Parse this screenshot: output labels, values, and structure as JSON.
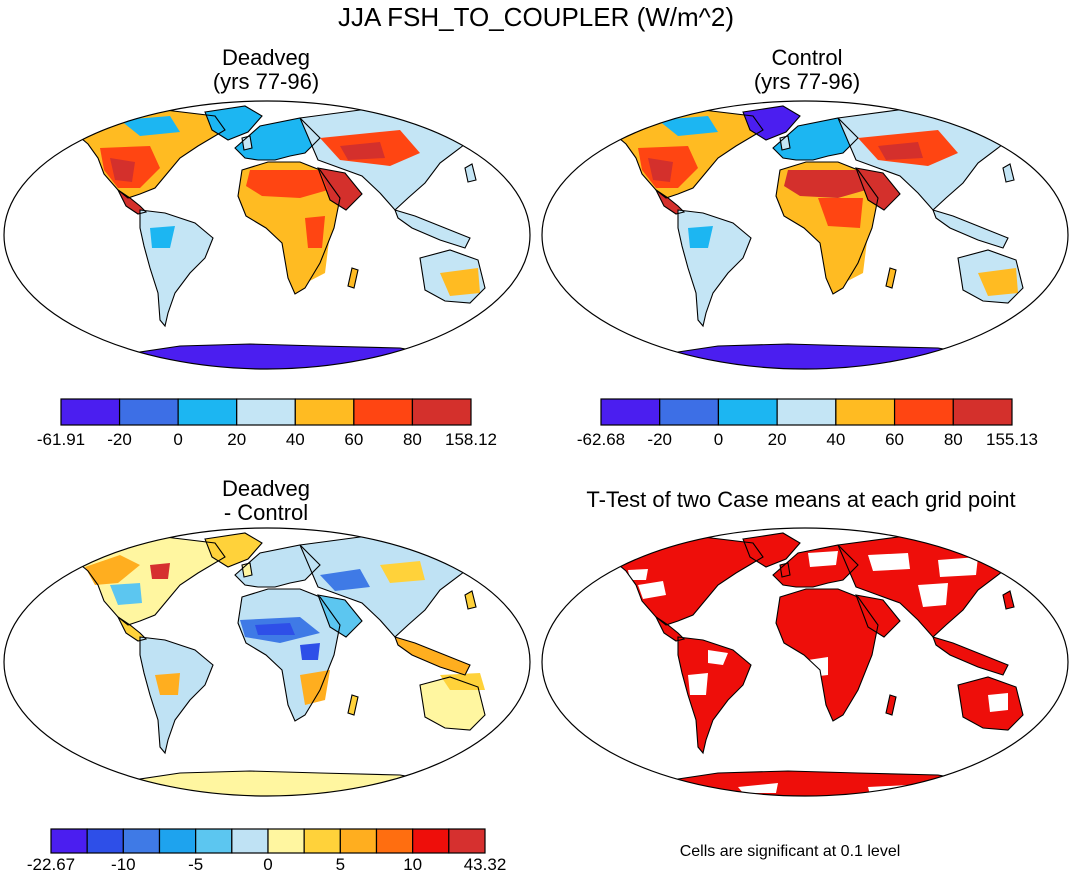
{
  "figure": {
    "title": "JJA FSH_TO_COUPLER (W/m^2)"
  },
  "panels": {
    "deadveg": {
      "title_line1": "Deadveg",
      "title_line2": "(yrs 77-96)"
    },
    "control": {
      "title_line1": "Control",
      "title_line2": "(yrs 77-96)"
    },
    "difference": {
      "title_line1": "Deadveg",
      "title_line2": "- Control"
    },
    "ttest": {
      "title": "T-Test of two Case means at each grid point"
    }
  },
  "colorbars": {
    "deadveg": {
      "colors": [
        "#4b1ef0",
        "#3d6fe6",
        "#1cb6f2",
        "#c4e5f5",
        "#ffbb22",
        "#ff4512",
        "#d4302c"
      ],
      "labels": [
        "-61.91",
        "-20",
        "0",
        "20",
        "40",
        "60",
        "80",
        "158.12"
      ]
    },
    "control": {
      "colors": [
        "#4b1ef0",
        "#3d6fe6",
        "#1cb6f2",
        "#c4e5f5",
        "#ffbb22",
        "#ff4512",
        "#d4302c"
      ],
      "labels": [
        "-62.68",
        "-20",
        "0",
        "20",
        "40",
        "60",
        "80",
        "155.13"
      ]
    },
    "difference": {
      "colors": [
        "#4b1ef0",
        "#2e4fe8",
        "#3f7ae6",
        "#1ea3ee",
        "#5cc6f0",
        "#bfe2f4",
        "#fff6a0",
        "#ffd23a",
        "#ffae1f",
        "#ff6e10",
        "#ee0e0a",
        "#d6302f"
      ],
      "labels": [
        "-22.67",
        "-10",
        "-5",
        "0",
        "5",
        "10",
        "43.32"
      ]
    }
  },
  "note": "Cells are significant at 0.1 level"
}
